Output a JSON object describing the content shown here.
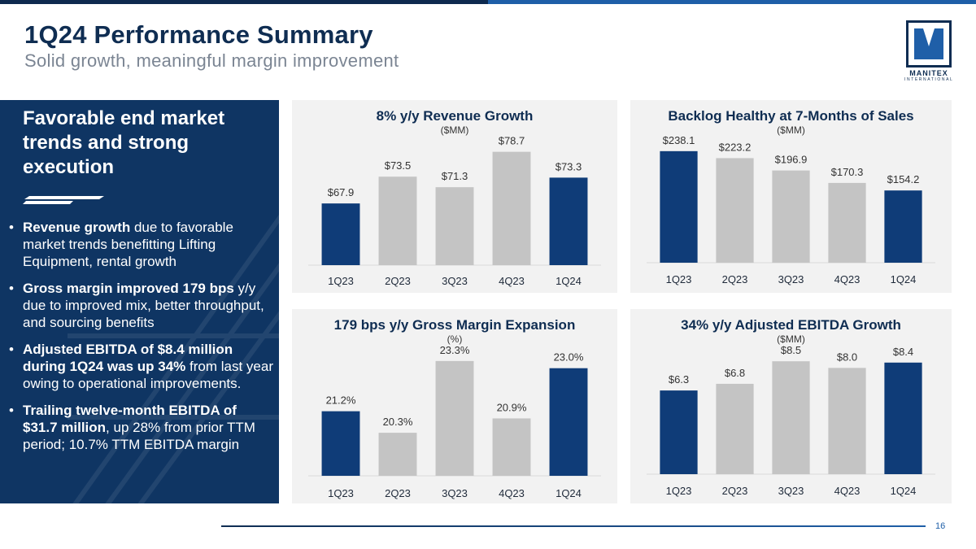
{
  "header": {
    "title": "1Q24 Performance Summary",
    "subtitle": "Solid growth, meaningful margin improvement"
  },
  "logo": {
    "name": "MANITEX",
    "sub": "INTERNATIONAL"
  },
  "left_panel": {
    "heading": "Favorable end market trends and strong execution",
    "bullets": [
      {
        "bold": "Revenue growth",
        "rest": " due to favorable market trends benefitting Lifting Equipment, rental growth"
      },
      {
        "bold": "Gross margin improved 179 bps",
        "rest": " y/y due to improved mix, better throughput, and sourcing benefits"
      },
      {
        "bold": "Adjusted EBITDA of $8.4 million during 1Q24 was up 34%",
        "rest": " from last year owing to operational improvements."
      },
      {
        "bold": "Trailing twelve-month EBITDA of $31.7 million",
        "rest": ", up 28% from prior TTM period; 10.7% TTM EBITDA margin"
      }
    ]
  },
  "colors": {
    "highlight": "#0f3c78",
    "neutral": "#c4c4c4",
    "panel_bg": "#f2f2f2"
  },
  "chart_data": [
    {
      "type": "bar",
      "title": "8% y/y Revenue Growth",
      "unit": "($MM)",
      "categories": [
        "1Q23",
        "2Q23",
        "3Q23",
        "4Q23",
        "1Q24"
      ],
      "values": [
        67.9,
        73.5,
        71.3,
        78.7,
        73.3
      ],
      "labels": [
        "$67.9",
        "$73.5",
        "$71.3",
        "$78.7",
        "$73.3"
      ],
      "highlight": [
        true,
        false,
        false,
        false,
        true
      ],
      "ylim": [
        55,
        80
      ]
    },
    {
      "type": "bar",
      "title": "Backlog Healthy at 7-Months of Sales",
      "unit": "($MM)",
      "categories": [
        "1Q23",
        "2Q23",
        "3Q23",
        "4Q23",
        "1Q24"
      ],
      "values": [
        238.1,
        223.2,
        196.9,
        170.3,
        154.2
      ],
      "labels": [
        "$238.1",
        "$223.2",
        "$196.9",
        "$170.3",
        "$154.2"
      ],
      "highlight": [
        true,
        false,
        false,
        false,
        true
      ],
      "ylim": [
        0,
        250
      ]
    },
    {
      "type": "bar",
      "title": "179 bps y/y Gross Margin Expansion",
      "unit": "(%)",
      "categories": [
        "1Q23",
        "2Q23",
        "3Q23",
        "4Q23",
        "1Q24"
      ],
      "values": [
        21.2,
        20.3,
        23.3,
        20.9,
        23.0
      ],
      "labels": [
        "21.2%",
        "20.3%",
        "23.3%",
        "20.9%",
        "23.0%"
      ],
      "highlight": [
        true,
        false,
        false,
        false,
        true
      ],
      "ylim": [
        18.5,
        23.5
      ]
    },
    {
      "type": "bar",
      "title": "34% y/y Adjusted EBITDA Growth",
      "unit": "($MM)",
      "categories": [
        "1Q23",
        "2Q23",
        "3Q23",
        "4Q23",
        "1Q24"
      ],
      "values": [
        6.3,
        6.8,
        8.5,
        8.0,
        8.4
      ],
      "labels": [
        "$6.3",
        "$6.8",
        "$8.5",
        "$8.0",
        "$8.4"
      ],
      "highlight": [
        true,
        false,
        false,
        false,
        true
      ],
      "ylim": [
        0,
        9
      ]
    }
  ],
  "footer": {
    "page_number": "16"
  }
}
